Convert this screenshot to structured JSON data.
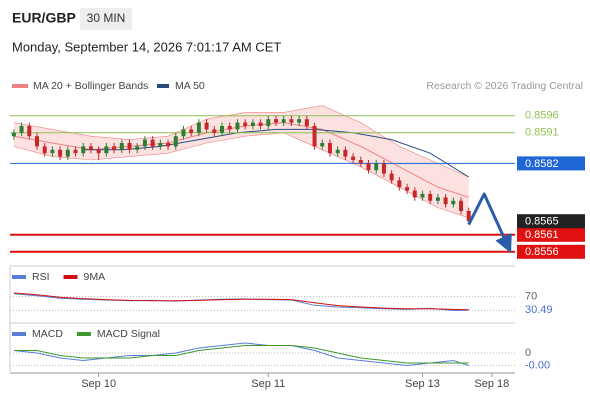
{
  "header": {
    "symbol": "EUR/GBP",
    "interval": "30 MIN",
    "datetime": "Monday, September 14, 2026 7:01:17 AM CET"
  },
  "chart_data": [
    {
      "type": "candlestick",
      "credit": "Research © 2026 Trading Central",
      "xlim": [
        -0.5,
        65
      ],
      "ylim": [
        0.8553,
        0.8603
      ],
      "xticks": [
        {
          "value": 11,
          "label": "Sep 10"
        },
        {
          "value": 33,
          "label": "Sep 11"
        },
        {
          "value": 53,
          "label": "Sep 13"
        },
        {
          "value": 62,
          "label": "Sep 18"
        }
      ],
      "up_color": "#2e7d32",
      "down_color": "#c62828",
      "x": [
        0,
        1,
        2,
        3,
        4,
        5,
        6,
        7,
        8,
        9,
        10,
        11,
        12,
        13,
        14,
        15,
        16,
        17,
        18,
        19,
        20,
        21,
        22,
        23,
        24,
        25,
        26,
        27,
        28,
        29,
        30,
        31,
        32,
        33,
        34,
        35,
        36,
        37,
        38,
        39,
        40,
        41,
        42,
        43,
        44,
        45,
        46,
        47,
        48,
        49,
        50,
        51,
        52,
        53,
        54,
        55,
        56,
        57,
        58,
        59
      ],
      "open": [
        0.859,
        0.8591,
        0.8593,
        0.859,
        0.8587,
        0.8585,
        0.8586,
        0.8584,
        0.8586,
        0.8585,
        0.8587,
        0.8586,
        0.8585,
        0.8587,
        0.8586,
        0.8588,
        0.8586,
        0.8587,
        0.8589,
        0.8587,
        0.8588,
        0.8587,
        0.859,
        0.8592,
        0.8591,
        0.8594,
        0.8592,
        0.8591,
        0.8593,
        0.8592,
        0.8594,
        0.8593,
        0.8594,
        0.8593,
        0.8595,
        0.8594,
        0.8595,
        0.8594,
        0.8595,
        0.8593,
        0.8587,
        0.8588,
        0.8585,
        0.8586,
        0.8584,
        0.8583,
        0.8582,
        0.858,
        0.8582,
        0.8579,
        0.8577,
        0.8575,
        0.8574,
        0.8572,
        0.8573,
        0.8571,
        0.8572,
        0.857,
        0.8571,
        0.8568
      ],
      "high": [
        0.8592,
        0.8594,
        0.8594,
        0.8591,
        0.8588,
        0.8587,
        0.8587,
        0.8587,
        0.8587,
        0.8588,
        0.8588,
        0.8587,
        0.8588,
        0.8588,
        0.8589,
        0.8589,
        0.8588,
        0.859,
        0.859,
        0.8589,
        0.8589,
        0.8591,
        0.8593,
        0.8593,
        0.8595,
        0.8595,
        0.8593,
        0.8594,
        0.8594,
        0.8595,
        0.8595,
        0.8595,
        0.8595,
        0.8596,
        0.8596,
        0.8596,
        0.8596,
        0.8596,
        0.8596,
        0.8594,
        0.8589,
        0.8589,
        0.8587,
        0.8587,
        0.8585,
        0.8584,
        0.8583,
        0.8583,
        0.8583,
        0.858,
        0.8578,
        0.8576,
        0.8575,
        0.8574,
        0.8574,
        0.8573,
        0.8573,
        0.8572,
        0.8572,
        0.8569
      ],
      "low": [
        0.8589,
        0.859,
        0.8589,
        0.8586,
        0.8584,
        0.8584,
        0.8583,
        0.8583,
        0.8584,
        0.8584,
        0.8585,
        0.8583,
        0.8584,
        0.8585,
        0.8585,
        0.8585,
        0.8585,
        0.8586,
        0.8586,
        0.8586,
        0.8586,
        0.8586,
        0.8589,
        0.859,
        0.859,
        0.8591,
        0.859,
        0.859,
        0.8591,
        0.8591,
        0.8592,
        0.8592,
        0.8592,
        0.8592,
        0.8593,
        0.8593,
        0.8593,
        0.8593,
        0.8592,
        0.8586,
        0.8586,
        0.8584,
        0.8584,
        0.8583,
        0.8582,
        0.8581,
        0.8579,
        0.8579,
        0.8578,
        0.8576,
        0.8574,
        0.8573,
        0.8571,
        0.8571,
        0.857,
        0.857,
        0.8569,
        0.8569,
        0.8567,
        0.8564
      ],
      "close": [
        0.8591,
        0.8593,
        0.859,
        0.8587,
        0.8585,
        0.8586,
        0.8584,
        0.8586,
        0.8585,
        0.8587,
        0.8586,
        0.8585,
        0.8587,
        0.8586,
        0.8588,
        0.8586,
        0.8587,
        0.8589,
        0.8587,
        0.8588,
        0.8587,
        0.859,
        0.8592,
        0.8591,
        0.8594,
        0.8592,
        0.8591,
        0.8593,
        0.8592,
        0.8594,
        0.8593,
        0.8594,
        0.8593,
        0.8595,
        0.8594,
        0.8595,
        0.8594,
        0.8595,
        0.8593,
        0.8587,
        0.8588,
        0.8585,
        0.8586,
        0.8584,
        0.8583,
        0.8582,
        0.858,
        0.8582,
        0.8579,
        0.8577,
        0.8575,
        0.8574,
        0.8572,
        0.8573,
        0.8571,
        0.8572,
        0.857,
        0.8571,
        0.8568,
        0.8565
      ],
      "bollinger": {
        "name": "MA 20 + Bollinger Bands",
        "color": "#f08080",
        "fill": "#fbd9d9",
        "x": [
          0,
          5,
          10,
          15,
          20,
          25,
          30,
          35,
          40,
          45,
          50,
          55,
          59
        ],
        "upper": [
          0.8594,
          0.8592,
          0.859,
          0.8589,
          0.859,
          0.8595,
          0.8597,
          0.8597,
          0.8599,
          0.8594,
          0.8587,
          0.8582,
          0.8578
        ],
        "middle": [
          0.859,
          0.8588,
          0.8586,
          0.8587,
          0.8588,
          0.8591,
          0.8593,
          0.8594,
          0.8592,
          0.8587,
          0.8581,
          0.8575,
          0.8572
        ],
        "lower": [
          0.8587,
          0.8584,
          0.8583,
          0.8584,
          0.8585,
          0.8588,
          0.859,
          0.8591,
          0.8586,
          0.8581,
          0.8575,
          0.8569,
          0.8566
        ]
      },
      "ma50": {
        "name": "MA 50",
        "color": "#2b4a80",
        "x": [
          9,
          14,
          19,
          24,
          29,
          34,
          39,
          44,
          49,
          54,
          59
        ],
        "values": [
          0.8586,
          0.8586,
          0.8587,
          0.8589,
          0.8591,
          0.8592,
          0.8592,
          0.8591,
          0.8589,
          0.8585,
          0.8578
        ]
      },
      "levels": [
        {
          "value": 0.8596,
          "color": "#8cc152",
          "style": "text"
        },
        {
          "value": 0.8591,
          "color": "#8cc152",
          "style": "text"
        },
        {
          "value": 0.8582,
          "color": "#1f66d6",
          "style": "box"
        },
        {
          "value": 0.8561,
          "color": "#e01010",
          "style": "box"
        },
        {
          "value": 0.8556,
          "color": "#e01010",
          "style": "box"
        }
      ],
      "current_price": {
        "value": 0.8565,
        "color": "#222222"
      },
      "forecast": {
        "color": "#2a5caa",
        "x": [
          59,
          61,
          64
        ],
        "values": [
          0.8564,
          0.8573,
          0.8558
        ]
      }
    },
    {
      "type": "line",
      "xlim": [
        -0.5,
        65
      ],
      "ylim": [
        0,
        100
      ],
      "yticks": [
        70
      ],
      "current": {
        "value": 30.49,
        "color": "#4a6fd6"
      },
      "x": [
        0,
        3,
        6,
        9,
        12,
        15,
        18,
        21,
        24,
        27,
        30,
        33,
        36,
        39,
        42,
        45,
        48,
        51,
        54,
        57,
        59
      ],
      "series": [
        {
          "name": "RSI",
          "color": "#5b7fd6",
          "values": [
            78,
            72,
            65,
            62,
            60,
            58,
            59,
            57,
            60,
            62,
            63,
            61,
            60,
            45,
            40,
            38,
            35,
            33,
            36,
            30,
            30.49
          ]
        },
        {
          "name": "9MA",
          "color": "#d01010",
          "values": [
            80,
            75,
            68,
            64,
            61,
            59,
            58,
            58,
            59,
            61,
            62,
            62,
            61,
            52,
            44,
            40,
            37,
            35,
            35,
            33,
            32
          ]
        }
      ]
    },
    {
      "type": "line",
      "xlim": [
        -0.5,
        65
      ],
      "ylim": [
        -0.001,
        0.001
      ],
      "yticks": [
        0
      ],
      "current": {
        "value": -0.0005,
        "value_label": "-0.00",
        "color": "#4a6fd6"
      },
      "x": [
        0,
        3,
        6,
        9,
        12,
        15,
        18,
        21,
        24,
        27,
        30,
        33,
        36,
        39,
        42,
        45,
        48,
        51,
        54,
        57,
        59
      ],
      "series": [
        {
          "name": "MACD",
          "color": "#5b7fd6",
          "values": [
            0.0001,
            0.0,
            -0.0002,
            -0.0003,
            -0.0002,
            -0.0001,
            -0.0001,
            0.0,
            0.0002,
            0.0003,
            0.0004,
            0.0003,
            0.0003,
            0.0001,
            -0.0002,
            -0.0003,
            -0.0004,
            -0.0005,
            -0.0004,
            -0.0003,
            -0.0005
          ]
        },
        {
          "name": "MACD Signal",
          "color": "#3c9a2c",
          "values": [
            0.0001,
            0.0001,
            -0.0001,
            -0.0002,
            -0.0002,
            -0.0002,
            -0.0001,
            -0.0001,
            0.0001,
            0.0002,
            0.0003,
            0.0003,
            0.0003,
            0.0002,
            0.0,
            -0.0002,
            -0.0003,
            -0.0004,
            -0.0004,
            -0.0004,
            -0.0004
          ]
        }
      ]
    }
  ]
}
